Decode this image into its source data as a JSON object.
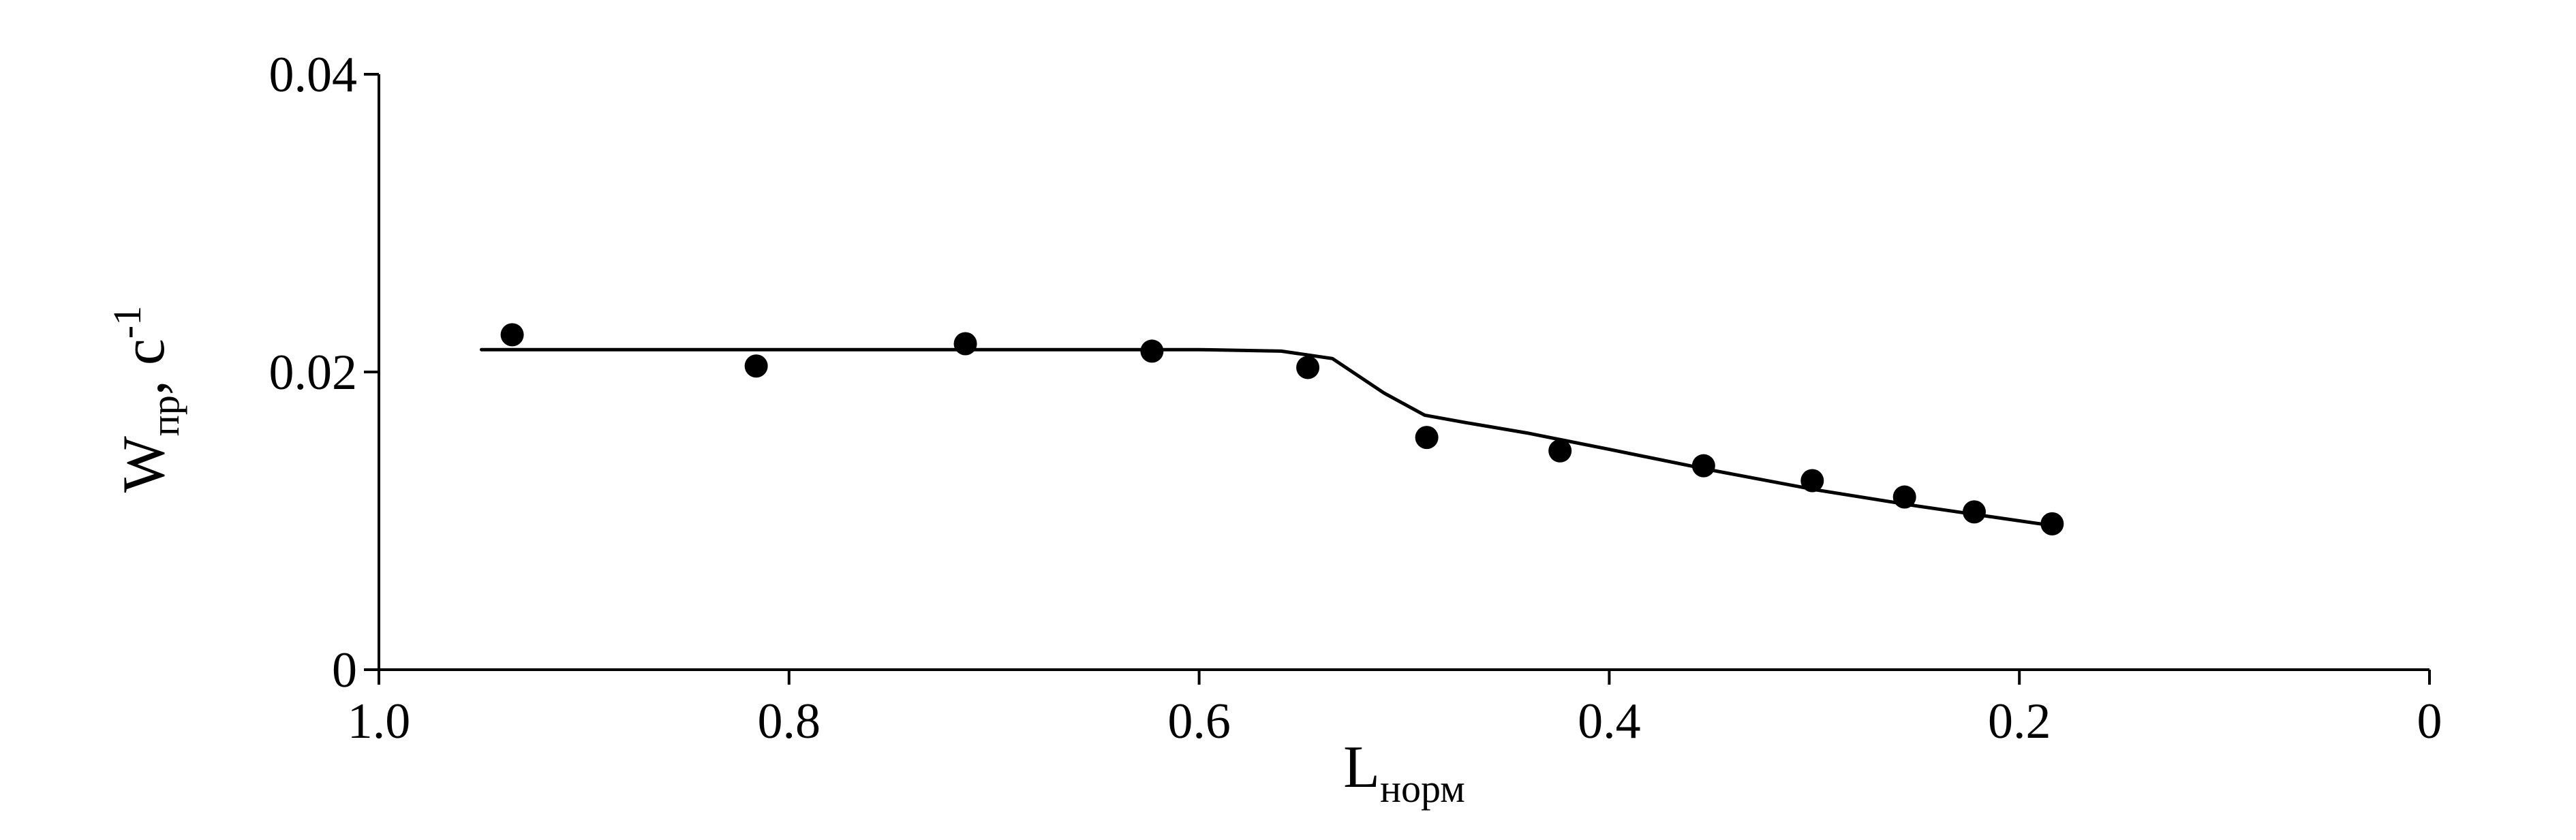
{
  "chart_data": {
    "type": "scatter",
    "x_axis": {
      "label_main": "L",
      "label_sub": "норм",
      "ticks": [
        "1.0",
        "0.8",
        "0.6",
        "0.4",
        "0.2",
        "0"
      ],
      "tick_values": [
        1.0,
        0.8,
        0.6,
        0.4,
        0.2,
        0
      ],
      "range": [
        1.0,
        0
      ],
      "reversed": true
    },
    "y_axis": {
      "label_main": "W",
      "label_sub": "пр",
      "label_suffix": ", c",
      "label_sup": "-1",
      "ticks": [
        "0",
        "0.02",
        "0.04"
      ],
      "tick_values": [
        0,
        0.02,
        0.04
      ],
      "range": [
        0,
        0.04
      ]
    },
    "grid": false,
    "legend": "none",
    "points": [
      {
        "x": 0.935,
        "y": 0.0225
      },
      {
        "x": 0.816,
        "y": 0.0204
      },
      {
        "x": 0.714,
        "y": 0.0219
      },
      {
        "x": 0.623,
        "y": 0.0214
      },
      {
        "x": 0.547,
        "y": 0.0203
      },
      {
        "x": 0.489,
        "y": 0.0156
      },
      {
        "x": 0.424,
        "y": 0.0147
      },
      {
        "x": 0.354,
        "y": 0.0137
      },
      {
        "x": 0.301,
        "y": 0.0127
      },
      {
        "x": 0.256,
        "y": 0.0116
      },
      {
        "x": 0.222,
        "y": 0.0106
      },
      {
        "x": 0.184,
        "y": 0.0098
      }
    ],
    "fit_curve": [
      {
        "x": 0.95,
        "y": 0.0215
      },
      {
        "x": 0.8,
        "y": 0.0215
      },
      {
        "x": 0.6,
        "y": 0.0215
      },
      {
        "x": 0.56,
        "y": 0.0214
      },
      {
        "x": 0.535,
        "y": 0.0209
      },
      {
        "x": 0.51,
        "y": 0.0186
      },
      {
        "x": 0.49,
        "y": 0.0171
      },
      {
        "x": 0.47,
        "y": 0.0166
      },
      {
        "x": 0.44,
        "y": 0.0159
      },
      {
        "x": 0.4,
        "y": 0.0148
      },
      {
        "x": 0.35,
        "y": 0.0134
      },
      {
        "x": 0.3,
        "y": 0.0121
      },
      {
        "x": 0.25,
        "y": 0.011
      },
      {
        "x": 0.22,
        "y": 0.0104
      },
      {
        "x": 0.18,
        "y": 0.0096
      }
    ],
    "colors": {
      "ink": "#000000",
      "background": "#ffffff"
    }
  }
}
